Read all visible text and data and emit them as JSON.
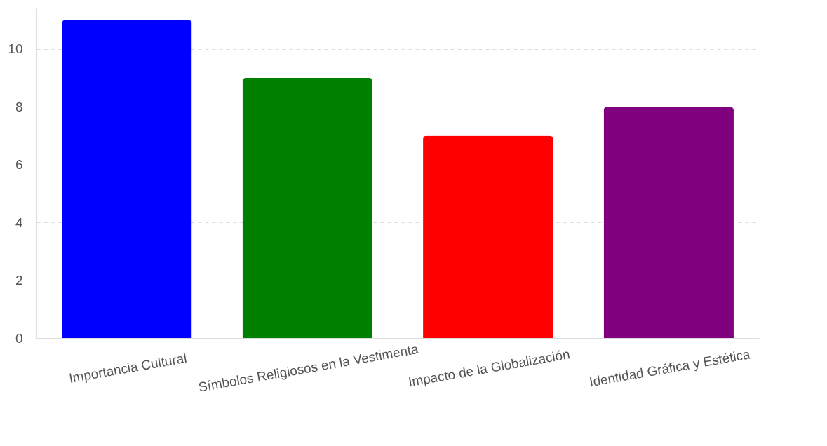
{
  "chart_data": {
    "type": "bar",
    "categories": [
      "Importancia Cultural",
      "Símbolos Religiosos en la Vestimenta",
      "Impacto de la Globalización",
      "Identidad Gráfica y Estética"
    ],
    "values": [
      11,
      9,
      7,
      8
    ],
    "colors": [
      "#0000ff",
      "#008000",
      "#ff0000",
      "#800080"
    ],
    "ylim": [
      0,
      11.4
    ],
    "yticks": [
      0,
      2,
      4,
      6,
      8,
      10
    ],
    "grid": "y"
  }
}
